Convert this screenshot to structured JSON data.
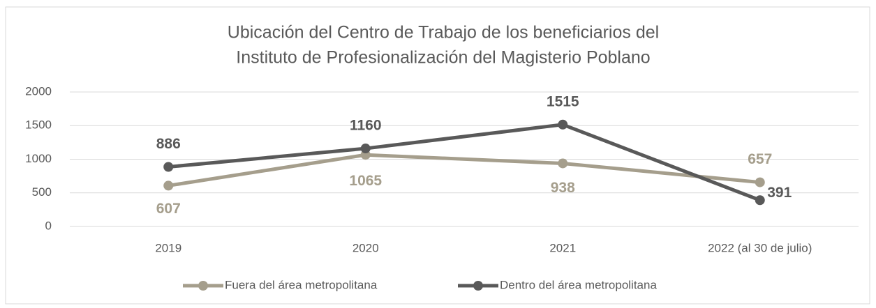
{
  "chart_data": {
    "type": "line",
    "title": [
      "Ubicación del Centro de Trabajo de los beneficiarios del",
      "Instituto de Profesionalización del Magisterio Poblano"
    ],
    "categories": [
      "2019",
      "2020",
      "2021",
      "2022 (al 30 de julio)"
    ],
    "series": [
      {
        "name": "Fuera del área metropolitana",
        "color": "#a59e8c",
        "values": [
          607,
          1065,
          938,
          657
        ]
      },
      {
        "name": "Dentro del área metropolitana",
        "color": "#595959",
        "values": [
          886,
          1160,
          1515,
          391
        ]
      }
    ],
    "ylim": [
      0,
      2000
    ],
    "yticks": [
      0,
      500,
      1000,
      1500,
      2000
    ],
    "grid": true,
    "legend": "bottom"
  }
}
